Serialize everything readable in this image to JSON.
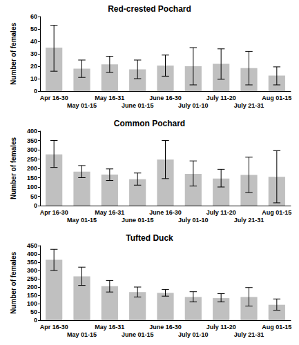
{
  "chart_data": [
    {
      "type": "bar",
      "title": "Red-crested Pochard",
      "y_label": "Number of females",
      "categories": [
        "Apr 16-30",
        "May 01-15",
        "May 16-31",
        "June 01-15",
        "June 16-30",
        "July 01-10",
        "July 11-20",
        "July 21-31",
        "Aug 01-15"
      ],
      "values": [
        35,
        18,
        21.5,
        17.5,
        20.5,
        20,
        22,
        18.5,
        12.5
      ],
      "error_low": [
        16,
        11,
        15,
        10,
        12,
        5,
        9.5,
        5,
        5
      ],
      "error_high": [
        53,
        25,
        28,
        25,
        29,
        35,
        34,
        32,
        19.5
      ],
      "color": "#c0c0c0",
      "ylim": [
        0,
        60
      ],
      "yticks": [
        0,
        10,
        20,
        30,
        40,
        50,
        60
      ],
      "grid": false
    },
    {
      "type": "bar",
      "title": "Common Pochard",
      "y_label": "Number of females",
      "categories": [
        "Apr 16-30",
        "May 01-15",
        "May 16-31",
        "June 01-15",
        "June 16-30",
        "July 01-10",
        "July 11-20",
        "July 21-31",
        "Aug 01-15"
      ],
      "values": [
        275,
        182,
        167,
        142,
        247,
        170,
        145,
        165,
        155
      ],
      "error_low": [
        205,
        150,
        135,
        110,
        145,
        105,
        100,
        70,
        15
      ],
      "error_high": [
        350,
        215,
        197,
        175,
        350,
        240,
        195,
        260,
        295
      ],
      "color": "#c0c0c0",
      "ylim": [
        0,
        400
      ],
      "yticks": [
        0,
        50,
        100,
        150,
        200,
        250,
        300,
        350,
        400
      ],
      "grid": false
    },
    {
      "type": "bar",
      "title": "Tufted Duck",
      "y_label": "Number of females",
      "categories": [
        "Apr 16-30",
        "May 01-15",
        "May 16-31",
        "June 01-15",
        "June 16-30",
        "July 01-10",
        "July 11-20",
        "July 21-31",
        "Aug 01-15"
      ],
      "values": [
        365,
        265,
        205,
        170,
        165,
        140,
        133,
        140,
        93
      ],
      "error_low": [
        300,
        210,
        170,
        140,
        145,
        110,
        110,
        85,
        60
      ],
      "error_high": [
        428,
        320,
        240,
        200,
        185,
        172,
        160,
        197,
        128
      ],
      "color": "#c0c0c0",
      "ylim": [
        0,
        450
      ],
      "yticks": [
        0,
        50,
        100,
        150,
        200,
        250,
        300,
        350,
        400,
        450
      ],
      "grid": false
    }
  ]
}
